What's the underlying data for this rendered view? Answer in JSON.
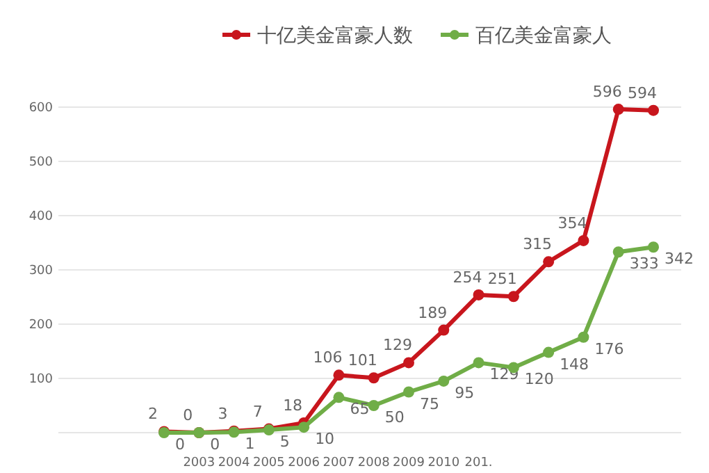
{
  "chart_data": {
    "type": "line",
    "categories": [
      null,
      "2003",
      "2004",
      "2005",
      "2006",
      "2007",
      "2008",
      "2009",
      "2010",
      "201.",
      null,
      null,
      null,
      null,
      null
    ],
    "series": [
      {
        "name": "十亿美金富豪人数",
        "color": "#c8161d",
        "values": [
          2,
          0,
          3,
          7,
          18,
          106,
          101,
          129,
          189,
          254,
          251,
          315,
          354,
          596,
          594
        ]
      },
      {
        "name": "百亿美金富豪人",
        "color": "#70ad47",
        "values": [
          0,
          0,
          1,
          5,
          10,
          65,
          50,
          75,
          95,
          129,
          120,
          148,
          176,
          333,
          342
        ]
      }
    ],
    "ylim": [
      0,
      600
    ],
    "yticks": [
      {
        "value": 0,
        "label": null
      },
      100,
      200,
      300,
      400,
      500,
      600
    ],
    "grid": "y",
    "legend": "top",
    "marker": "circle",
    "data_labels": true
  }
}
